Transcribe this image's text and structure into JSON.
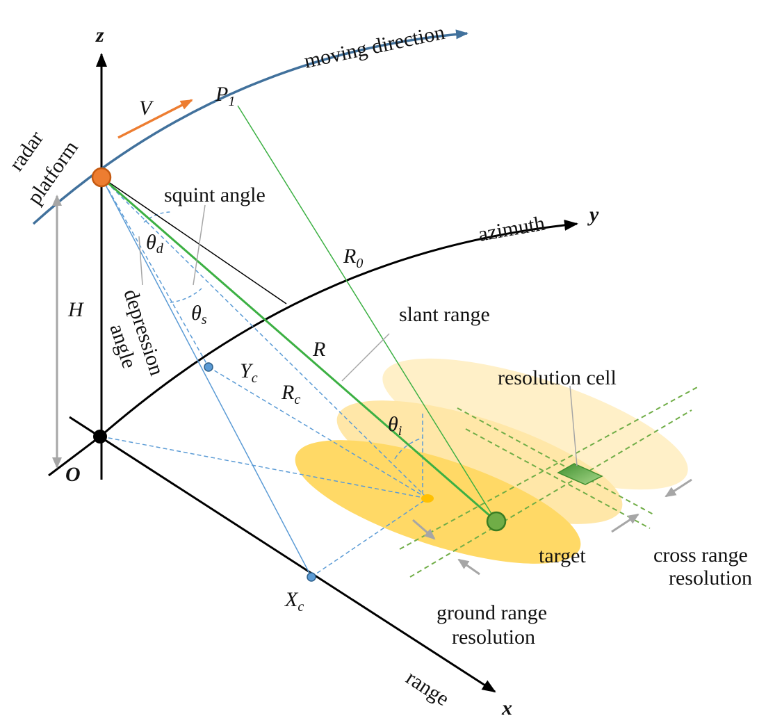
{
  "axes": {
    "z": "z",
    "y": "y",
    "x": "x",
    "origin": "O"
  },
  "labels": {
    "moving_direction": "moving direction",
    "radar": "radar",
    "platform": "platform",
    "velocity": "V",
    "p1_main": "P",
    "p1_sub": "1",
    "squint_angle": "squint angle",
    "theta_d_main": "θ",
    "theta_d_sub": "d",
    "theta_s_main": "θ",
    "theta_s_sub": "s",
    "theta_i_main": "θ",
    "theta_i_sub": "i",
    "azimuth": "azimuth",
    "r0_main": "R",
    "r0_sub": "0",
    "height": "H",
    "depression": "depression",
    "angle": "angle",
    "slant_range": "slant range",
    "r": "R",
    "yc_main": "Y",
    "yc_sub": "c",
    "rc_main": "R",
    "rc_sub": "c",
    "resolution_cell": "resolution cell",
    "target": "target",
    "cross_range_1": "cross range",
    "cross_range_2": "resolution",
    "ground_range_1": "ground range",
    "ground_range_2": "resolution",
    "xc_main": "X",
    "xc_sub": "c",
    "range": "range"
  },
  "colors": {
    "track": "#41719c",
    "velocity": "#ed7d31",
    "beam": "#5b9bd5",
    "slant": "#3cb043",
    "axis": "#000000",
    "footprint_far": "#fff0c8",
    "footprint_mid": "#ffe7a8",
    "footprint_near": "#ffd966",
    "grid": "#70ad47",
    "indicator": "#a6a6a6"
  }
}
